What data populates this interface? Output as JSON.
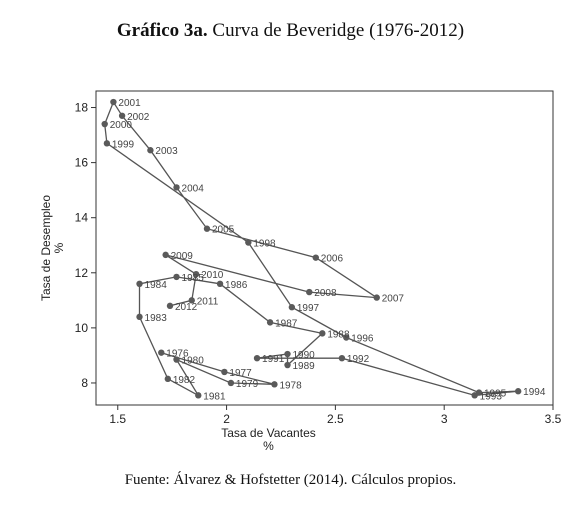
{
  "title": {
    "bold": "Gráfico 3a.",
    "rest": " Curva de Beveridge (1976-2012)"
  },
  "source": "Fuente: Álvarez & Hofstetter (2014). Cálculos propios.",
  "chart_data": {
    "type": "line",
    "xlabel": "Tasa de Vacantes",
    "xunit": "%",
    "ylabel": "Tasa de Desempleo",
    "yunit": "%",
    "xlim": [
      1.4,
      3.5
    ],
    "ylim": [
      7.2,
      18.6
    ],
    "xticks": [
      1.5,
      2,
      2.5,
      3,
      3.5
    ],
    "xtick_labels": [
      "1.5",
      "2",
      "2.5",
      "3",
      "3.5"
    ],
    "yticks": [
      8,
      10,
      12,
      14,
      16,
      18
    ],
    "ytick_labels": [
      "8",
      "10",
      "12",
      "14",
      "16",
      "18"
    ],
    "grid": false,
    "legend": "none",
    "line_color": "#555555",
    "marker_color": "#5a5a5a",
    "points": [
      {
        "label": "1976",
        "x": 1.7,
        "y": 9.1
      },
      {
        "label": "1977",
        "x": 1.99,
        "y": 8.4
      },
      {
        "label": "1978",
        "x": 2.22,
        "y": 7.95
      },
      {
        "label": "1979",
        "x": 2.02,
        "y": 8.0
      },
      {
        "label": "1980",
        "x": 1.77,
        "y": 8.85
      },
      {
        "label": "1981",
        "x": 1.87,
        "y": 7.55
      },
      {
        "label": "1982",
        "x": 1.73,
        "y": 8.15
      },
      {
        "label": "1983",
        "x": 1.6,
        "y": 10.4
      },
      {
        "label": "1984",
        "x": 1.6,
        "y": 11.6
      },
      {
        "label": "1985",
        "x": 1.77,
        "y": 11.85
      },
      {
        "label": "1986",
        "x": 1.97,
        "y": 11.6
      },
      {
        "label": "1987",
        "x": 2.2,
        "y": 10.2
      },
      {
        "label": "1988",
        "x": 2.44,
        "y": 9.8
      },
      {
        "label": "1989",
        "x": 2.28,
        "y": 8.65
      },
      {
        "label": "1990",
        "x": 2.28,
        "y": 9.05
      },
      {
        "label": "1991",
        "x": 2.14,
        "y": 8.9
      },
      {
        "label": "1992",
        "x": 2.53,
        "y": 8.9
      },
      {
        "label": "1993",
        "x": 3.14,
        "y": 7.55
      },
      {
        "label": "1994",
        "x": 3.34,
        "y": 7.7
      },
      {
        "label": "1995",
        "x": 3.16,
        "y": 7.65
      },
      {
        "label": "1996",
        "x": 2.55,
        "y": 9.65
      },
      {
        "label": "1997",
        "x": 2.3,
        "y": 10.75
      },
      {
        "label": "1998",
        "x": 2.1,
        "y": 13.1
      },
      {
        "label": "1999",
        "x": 1.45,
        "y": 16.7
      },
      {
        "label": "2000",
        "x": 1.44,
        "y": 17.4
      },
      {
        "label": "2001",
        "x": 1.48,
        "y": 18.2
      },
      {
        "label": "2002",
        "x": 1.52,
        "y": 17.7
      },
      {
        "label": "2003",
        "x": 1.65,
        "y": 16.45
      },
      {
        "label": "2004",
        "x": 1.77,
        "y": 15.1
      },
      {
        "label": "2005",
        "x": 1.91,
        "y": 13.6
      },
      {
        "label": "2006",
        "x": 2.41,
        "y": 12.55
      },
      {
        "label": "2007",
        "x": 2.69,
        "y": 11.1
      },
      {
        "label": "2008",
        "x": 2.38,
        "y": 11.3
      },
      {
        "label": "2009",
        "x": 1.72,
        "y": 12.65
      },
      {
        "label": "2010",
        "x": 1.86,
        "y": 11.95
      },
      {
        "label": "2011",
        "x": 1.84,
        "y": 11.0
      },
      {
        "label": "2012",
        "x": 1.74,
        "y": 10.8
      }
    ]
  }
}
